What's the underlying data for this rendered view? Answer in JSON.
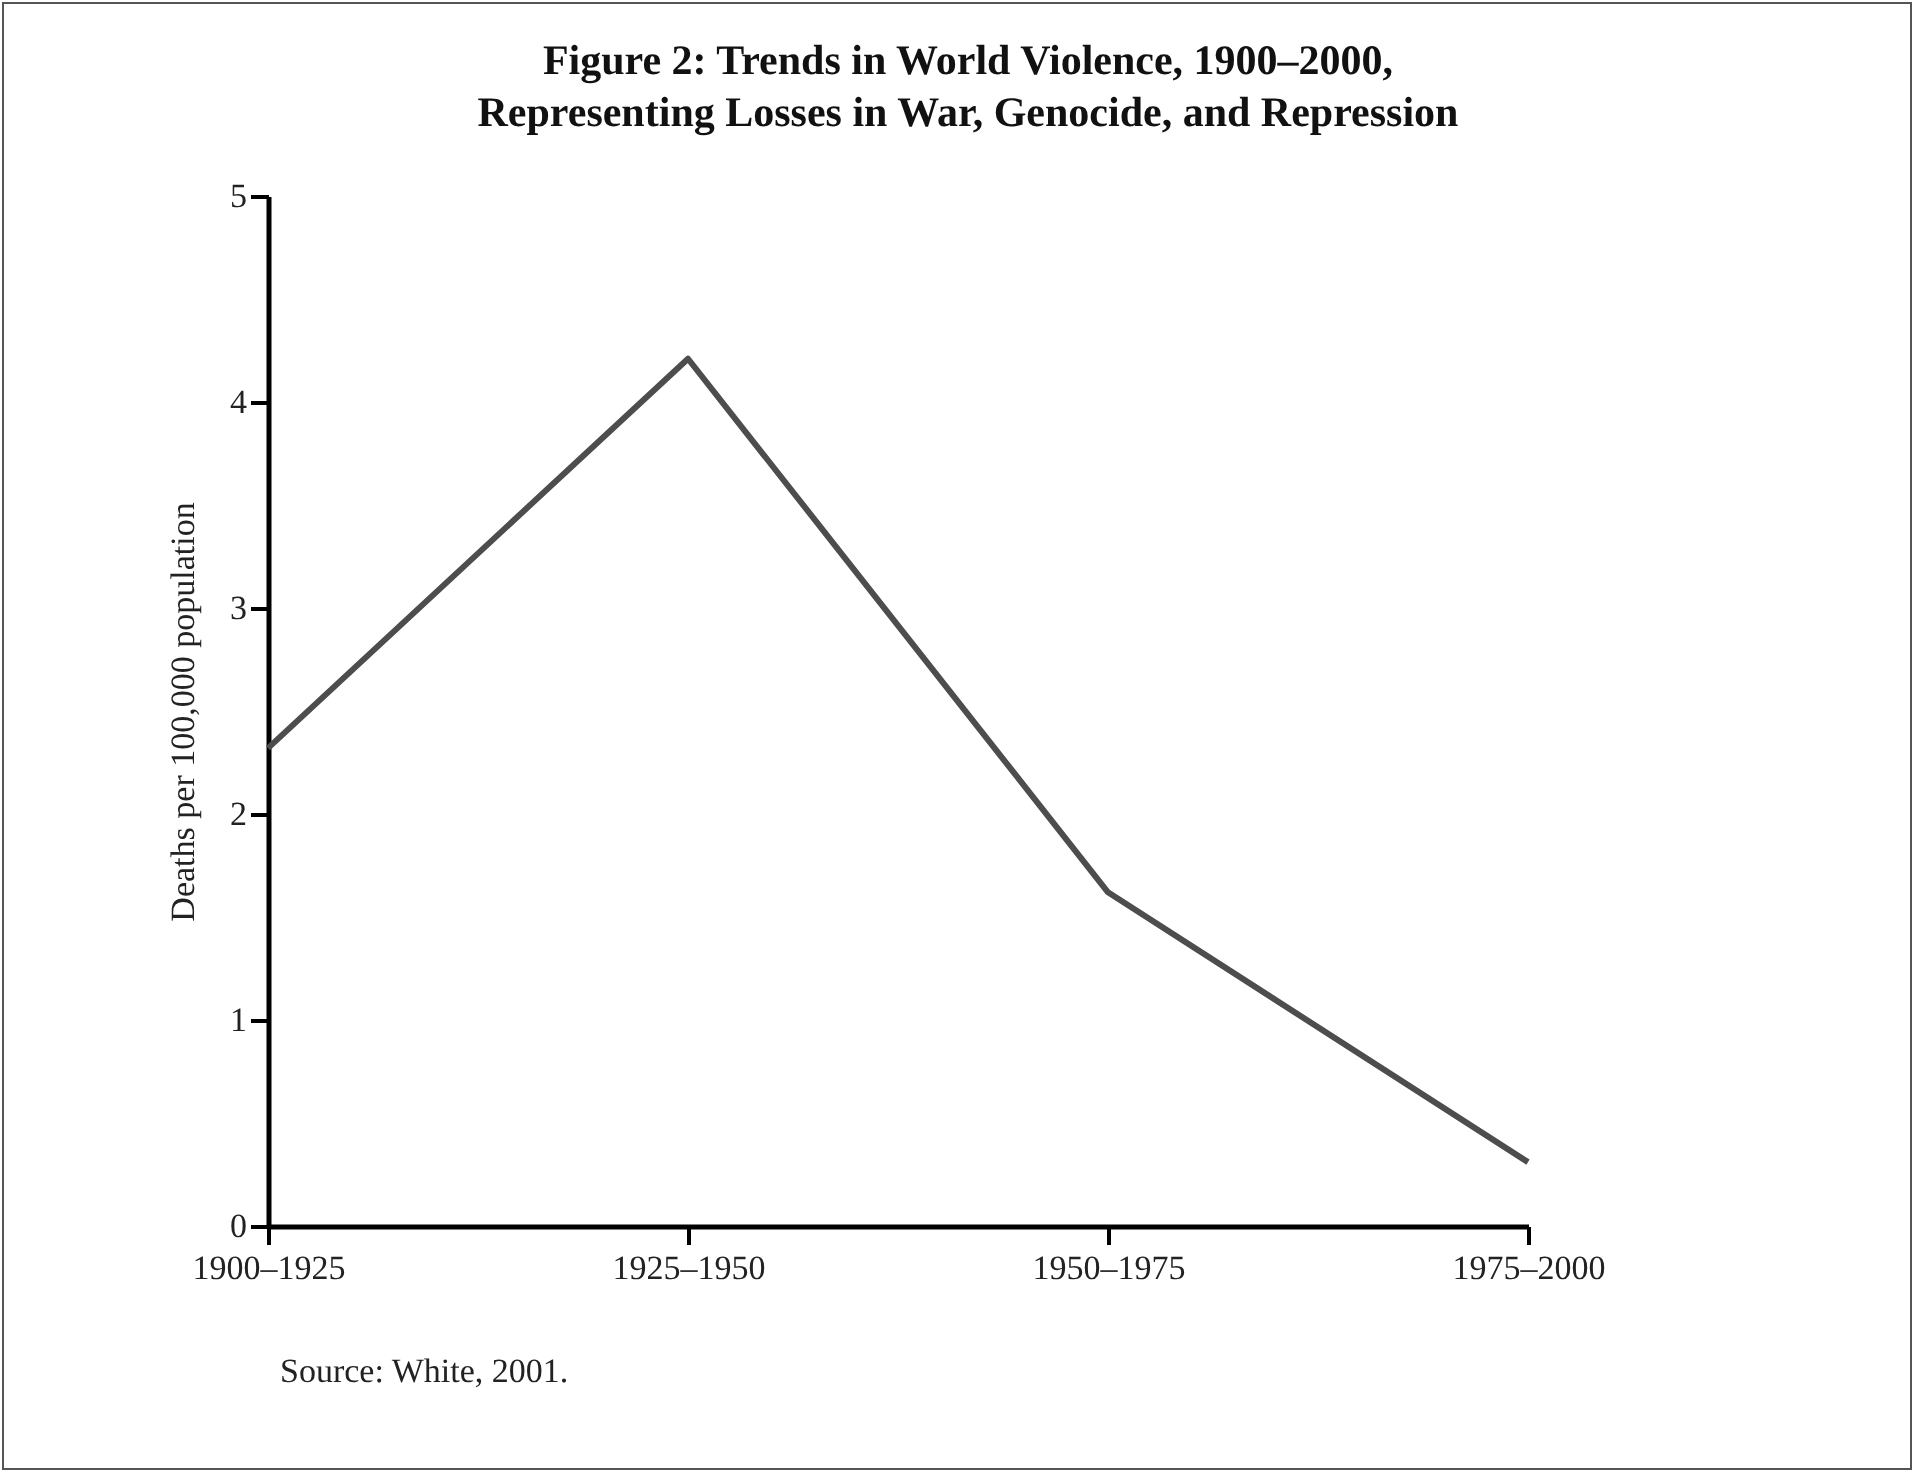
{
  "chart_data": {
    "type": "line",
    "title": "Figure 2: Trends in World Violence, 1900–2000,\nRepresenting Losses in War, Genocide, and Repression",
    "ylabel": "Deaths per 100,000 population",
    "categories": [
      "1900–1925",
      "1925–1950",
      "1950–1975",
      "1975–2000"
    ],
    "series": [
      {
        "color": "#4d4d4d",
        "values": [
          2.32,
          4.21,
          1.62,
          0.31
        ]
      }
    ],
    "ylim": [
      0,
      5
    ],
    "yticks": [
      0,
      1,
      2,
      3,
      4,
      5
    ],
    "grid": false,
    "marker": "none",
    "line_style": "solid",
    "annotations": [
      "Source: White, 2001."
    ]
  }
}
